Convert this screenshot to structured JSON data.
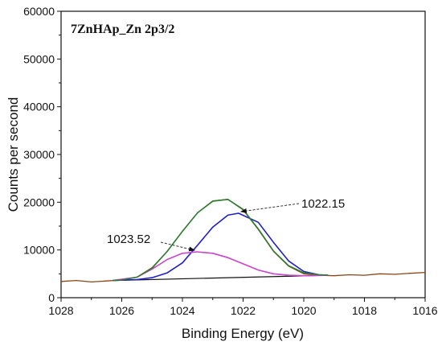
{
  "chart_data": {
    "type": "line",
    "title": "7ZnHAp_Zn 2p3/2",
    "xlabel": "Binding Energy (eV)",
    "ylabel": "Counts per second",
    "xlim": [
      1028,
      1016
    ],
    "x_reversed": true,
    "ylim": [
      0,
      60000
    ],
    "x_ticks": [
      "1028",
      "1026",
      "1024",
      "1022",
      "1020",
      "1018",
      "1016"
    ],
    "y_ticks": [
      "0",
      "10000",
      "20000",
      "30000",
      "40000",
      "50000",
      "60000"
    ],
    "grid": false,
    "series": [
      {
        "role": "measured",
        "color": "#8b4513",
        "x": [
          1028.0,
          1027.5,
          1027.0,
          1026.5,
          1026.0,
          1025.5,
          1025.0,
          1024.5,
          1024.0,
          1023.5,
          1023.0,
          1022.5,
          1022.0,
          1021.5,
          1021.0,
          1020.5,
          1020.0,
          1019.5,
          1019.0,
          1018.5,
          1018.0,
          1017.5,
          1017.0,
          1016.5,
          1016.0
        ],
        "y": [
          3400,
          3600,
          3300,
          3500,
          3700,
          4300,
          6300,
          9700,
          13900,
          17800,
          20300,
          20600,
          18400,
          14300,
          9700,
          6600,
          5000,
          4700,
          4600,
          4800,
          4700,
          5000,
          4900,
          5100,
          5300
        ]
      },
      {
        "role": "envelope",
        "color": "#2e7d32",
        "x": [
          1026.3,
          1026.0,
          1025.5,
          1025.0,
          1024.5,
          1024.0,
          1023.5,
          1023.0,
          1022.5,
          1022.0,
          1021.5,
          1021.0,
          1020.5,
          1020.0,
          1019.5,
          1019.2
        ],
        "y": [
          3600,
          3700,
          4300,
          6200,
          9700,
          13900,
          17800,
          20200,
          20600,
          18500,
          14400,
          9800,
          6700,
          5200,
          4800,
          4700
        ]
      },
      {
        "role": "peak",
        "color": "#1f1fcc",
        "label": "1022.15",
        "x": [
          1026.3,
          1025.5,
          1025.0,
          1024.5,
          1024.0,
          1023.5,
          1023.0,
          1022.5,
          1022.15,
          1021.5,
          1021.0,
          1020.5,
          1020.0,
          1019.5,
          1019.2
        ],
        "y": [
          3600,
          3800,
          4200,
          5200,
          7300,
          11000,
          14800,
          17300,
          17700,
          15800,
          11600,
          7700,
          5500,
          4800,
          4700
        ]
      },
      {
        "role": "peak",
        "color": "#cc44cc",
        "label": "1023.52",
        "x": [
          1026.3,
          1025.5,
          1025.0,
          1024.5,
          1024.0,
          1023.52,
          1023.0,
          1022.5,
          1022.0,
          1021.5,
          1021.0,
          1020.5,
          1020.0,
          1019.2
        ],
        "y": [
          3600,
          4300,
          6000,
          8000,
          9300,
          9600,
          9300,
          8400,
          7100,
          5800,
          5000,
          4700,
          4600,
          4700
        ]
      },
      {
        "role": "background",
        "color": "#111111",
        "x": [
          1026.3,
          1019.2
        ],
        "y": [
          3600,
          4700
        ]
      }
    ],
    "annotations": [
      {
        "text": "1022.15",
        "x": 1022.15,
        "y": 17700,
        "arrow": true
      },
      {
        "text": "1023.52",
        "x": 1023.52,
        "y": 9600,
        "arrow": true
      }
    ]
  }
}
